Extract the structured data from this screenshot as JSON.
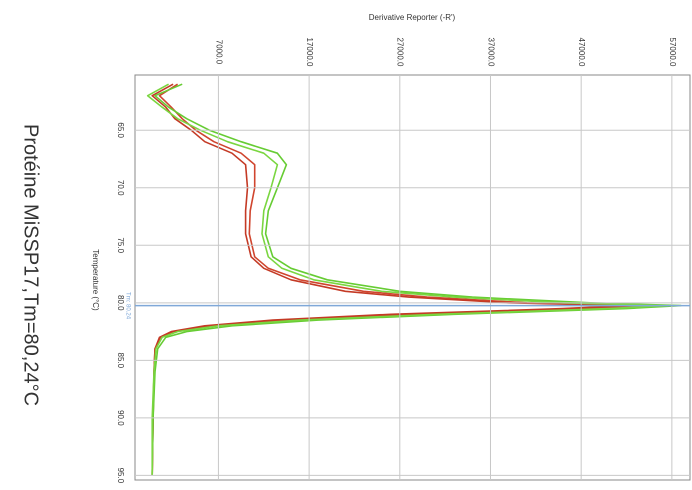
{
  "chart_data": {
    "type": "line",
    "title": "Protéine MiSSP17,Tm=80,24°C",
    "x_label": "Temperature (°C)",
    "y_label": "Derivative Reporter (-R')",
    "x": [
      61,
      62,
      63,
      64,
      65,
      66,
      67,
      68,
      70,
      72,
      74,
      76,
      77,
      78,
      79,
      79.5,
      80,
      80.24,
      80.5,
      81,
      81.5,
      82,
      82.5,
      83,
      84,
      86,
      90,
      95
    ],
    "series": [
      {
        "color": "#d0452e",
        "values": [
          2500,
          500,
          1800,
          3000,
          4500,
          6500,
          9500,
          11000,
          11000,
          10500,
          10400,
          11000,
          12500,
          16000,
          23000,
          30000,
          41000,
          54000,
          47000,
          28000,
          14000,
          6000,
          2000,
          600,
          0,
          -100,
          -200,
          -300
        ]
      },
      {
        "color": "#c43a25",
        "values": [
          2000,
          -300,
          1200,
          2200,
          4000,
          5500,
          8500,
          10000,
          10200,
          10000,
          10000,
          10600,
          12000,
          15000,
          21000,
          28000,
          39000,
          52000,
          45000,
          26000,
          13000,
          5500,
          1800,
          500,
          0,
          -100,
          -200,
          -300
        ]
      },
      {
        "color": "#66cc33",
        "values": [
          3000,
          0,
          1500,
          3500,
          6000,
          9500,
          13500,
          14500,
          13500,
          12500,
          12200,
          13000,
          15000,
          19000,
          27000,
          35000,
          48000,
          58000,
          52000,
          33000,
          18000,
          8500,
          3500,
          1200,
          300,
          0,
          -200,
          -300
        ]
      },
      {
        "color": "#7ad640",
        "values": [
          1500,
          -800,
          800,
          2500,
          5000,
          8000,
          12000,
          13500,
          12800,
          12000,
          11800,
          12500,
          14000,
          17500,
          25000,
          33000,
          45000,
          56500,
          50000,
          31000,
          16000,
          7000,
          2500,
          800,
          100,
          -100,
          -300,
          -300
        ]
      }
    ],
    "xlim": [
      60.2,
      95.4
    ],
    "xticks": [
      {
        "value": 65,
        "label": "65.0"
      },
      {
        "value": 70,
        "label": "70.0"
      },
      {
        "value": 75,
        "label": "75.0"
      },
      {
        "value": 80,
        "label": "80.0"
      },
      {
        "value": 85,
        "label": "85.0"
      },
      {
        "value": 90,
        "label": "90.0"
      },
      {
        "value": 95,
        "label": "95.0"
      }
    ],
    "ylim": [
      -2200,
      59000
    ],
    "yticks": [
      {
        "value": 7000,
        "label": "7000.0"
      },
      {
        "value": 17000,
        "label": "17000.0"
      },
      {
        "value": 27000,
        "label": "27000.0"
      },
      {
        "value": 37000,
        "label": "37000.0"
      },
      {
        "value": 47000,
        "label": "47000.0"
      },
      {
        "value": 57000,
        "label": "57000.0"
      }
    ],
    "grid": true,
    "tm": {
      "value": 80.24,
      "label": "Tm: 80.24",
      "color": "#7fa8d8"
    }
  }
}
